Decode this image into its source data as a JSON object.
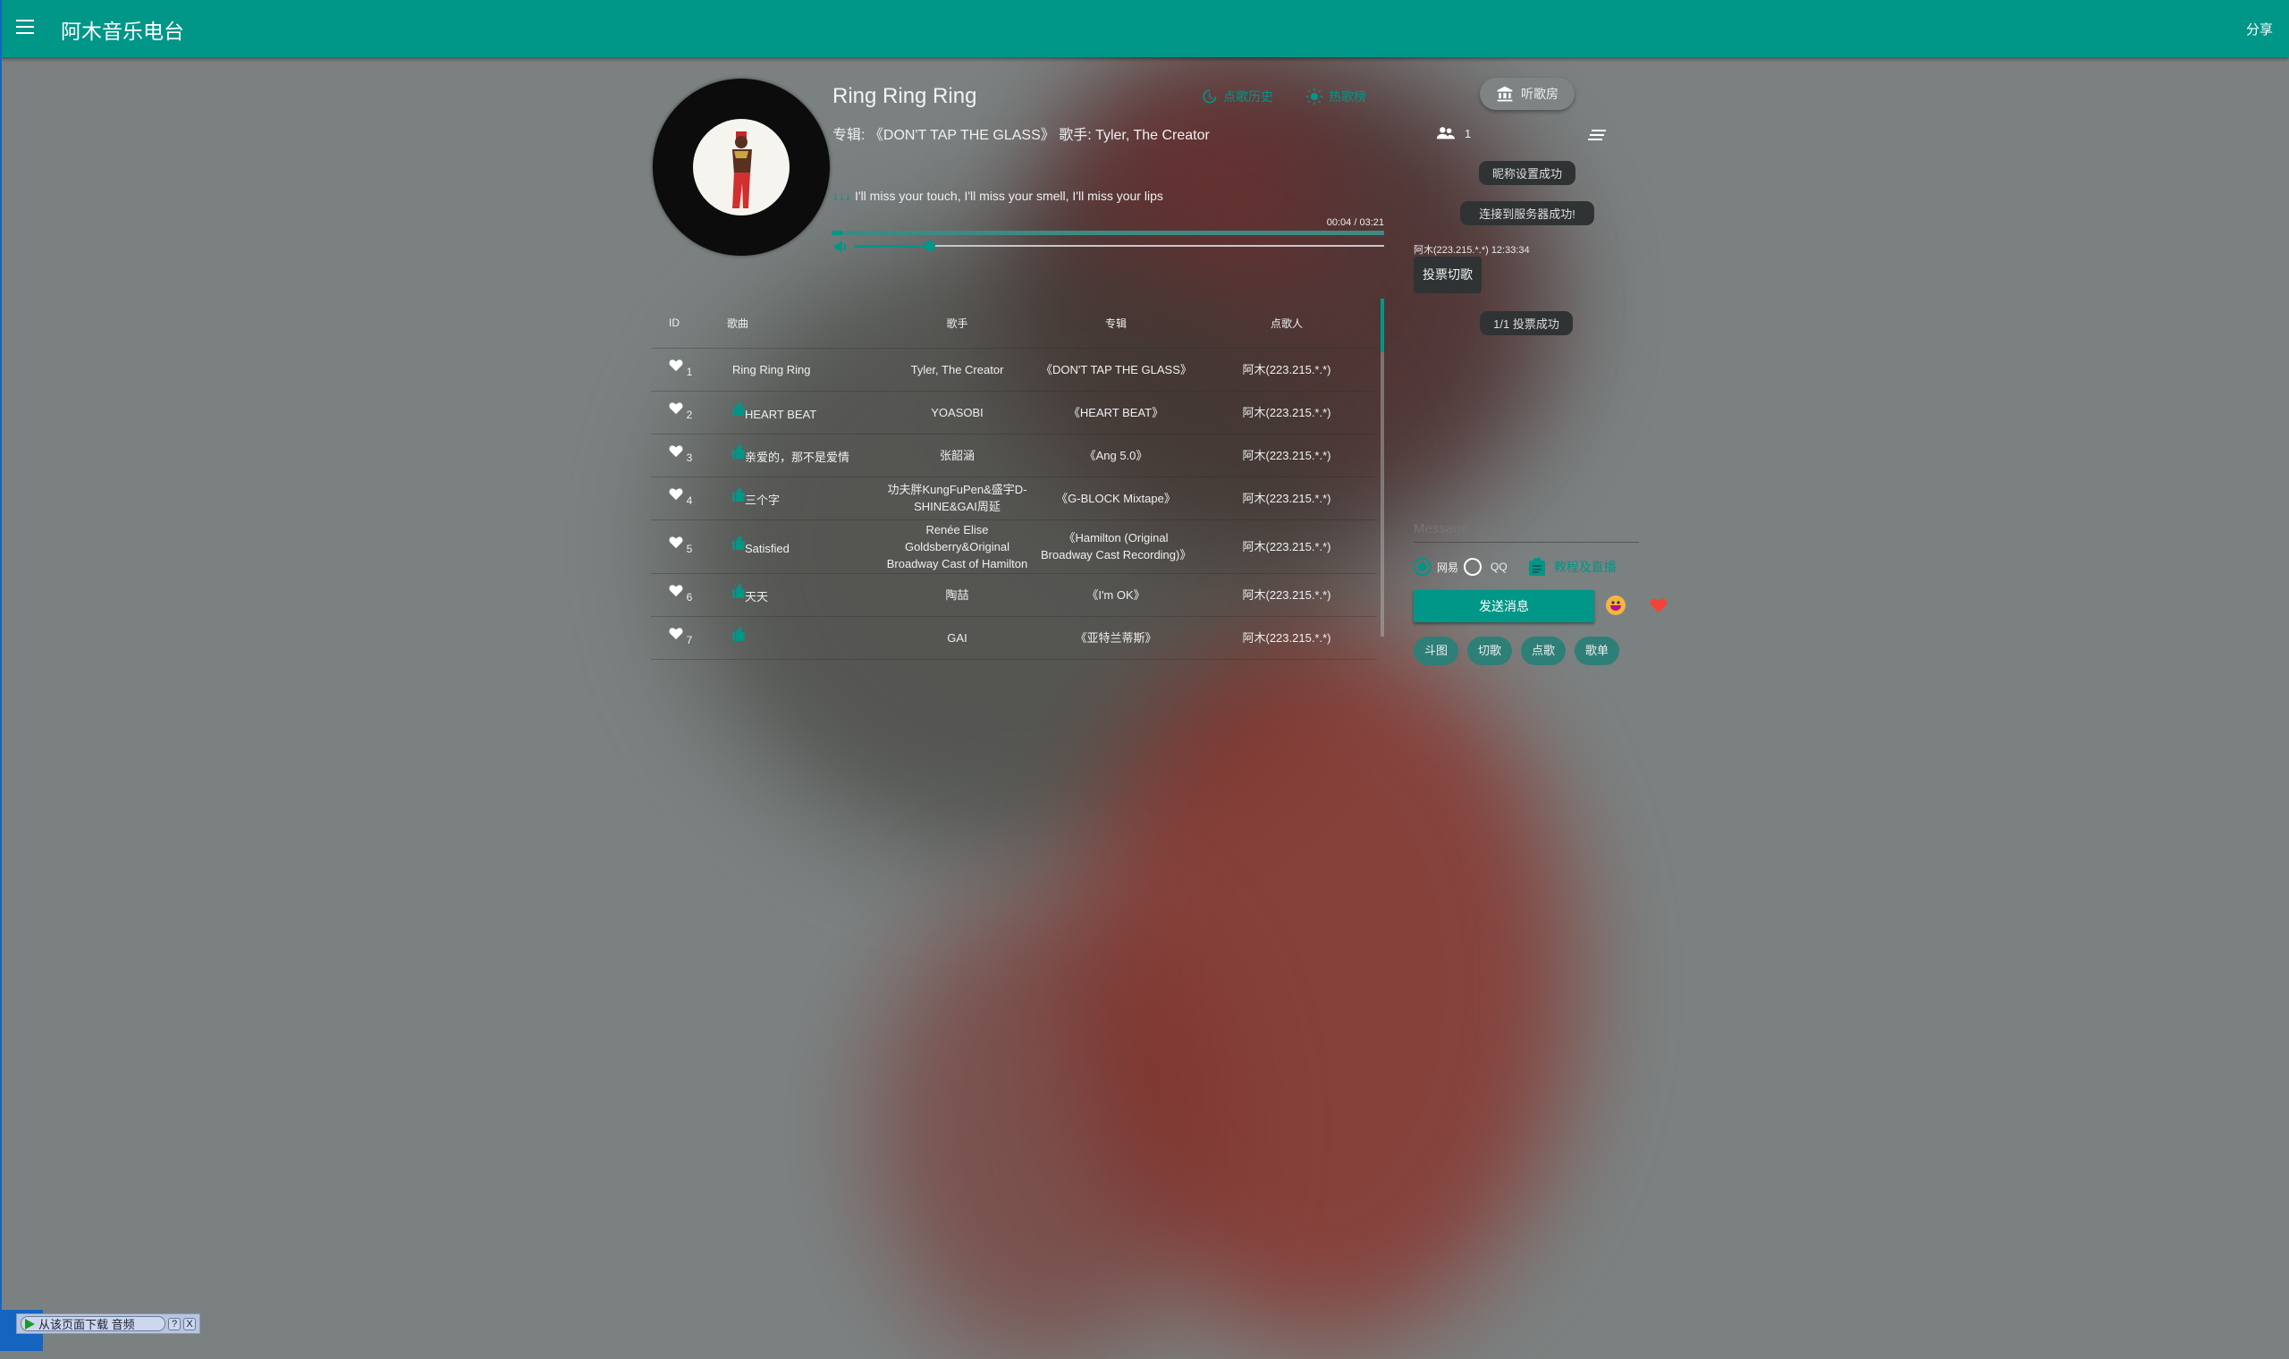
{
  "header": {
    "title": "阿木音乐电台",
    "share": "分享"
  },
  "player": {
    "title": "Ring Ring Ring",
    "album_line": "专辑: 《DON'T TAP THE GLASS》 歌手: Tyler, The Creator",
    "lyric_arrows": "↓↓↓",
    "lyric": "I'll miss your touch, I'll miss your smell, I'll miss your lips",
    "time": "00:04 / 03:21",
    "progress_fraction": 0.02,
    "volume_fraction": 0.12,
    "history_label": "点歌历史",
    "hot_label": "热歌榜"
  },
  "table": {
    "headers": [
      "ID",
      "歌曲",
      "歌手",
      "专辑",
      "点歌人"
    ],
    "rows": [
      {
        "id": "1",
        "song": "Ring Ring Ring",
        "thumb": false,
        "artist": "Tyler, The Creator",
        "album": "《DON'T TAP THE GLASS》",
        "user": "阿木(223.215.*.*)"
      },
      {
        "id": "2",
        "song": "HEART BEAT",
        "thumb": true,
        "artist": "YOASOBI",
        "album": "《HEART BEAT》",
        "user": "阿木(223.215.*.*)"
      },
      {
        "id": "3",
        "song": "亲爱的，那不是爱情",
        "thumb": true,
        "artist": "张韶涵",
        "album": "《Ang 5.0》",
        "user": "阿木(223.215.*.*)"
      },
      {
        "id": "4",
        "song": "三个字",
        "thumb": true,
        "artist": "功夫胖KungFuPen&盛宇D-SHINE&GAI周延",
        "album": "《G-BLOCK Mixtape》",
        "user": "阿木(223.215.*.*)"
      },
      {
        "id": "5",
        "song": "Satisfied",
        "thumb": true,
        "artist": "Renée Elise Goldsberry&Original Broadway Cast of Hamilton",
        "album": "《Hamilton (Original Broadway Cast Recording)》",
        "user": "阿木(223.215.*.*)"
      },
      {
        "id": "6",
        "song": "天天",
        "thumb": true,
        "artist": "陶喆",
        "album": "《I'm OK》",
        "user": "阿木(223.215.*.*)"
      },
      {
        "id": "7",
        "song": "",
        "thumb": true,
        "artist": "GAI",
        "album": "《亚特兰蒂斯》",
        "user": "阿木(223.215.*.*)"
      }
    ]
  },
  "chat": {
    "room_label": "听歌房",
    "online_count": "1",
    "toasts": {
      "nickname": "昵称设置成功",
      "connected": "连接到服务器成功!",
      "vote": "1/1 投票成功"
    },
    "message": {
      "meta": "阿木(223.215.*.*) 12:33:34",
      "text": "投票切歌"
    },
    "input_placeholder": "Message...",
    "source_options": [
      "网易",
      "QQ"
    ],
    "source_selected": "网易",
    "tutorial_label": "教程及直播",
    "send_label": "发送消息",
    "chips": [
      "斗图",
      "切歌",
      "点歌",
      "歌单"
    ]
  },
  "download_bar": {
    "label": "从该页面下载 音频",
    "help": "?",
    "close": "X"
  },
  "colors": {
    "accent": "#009688"
  }
}
